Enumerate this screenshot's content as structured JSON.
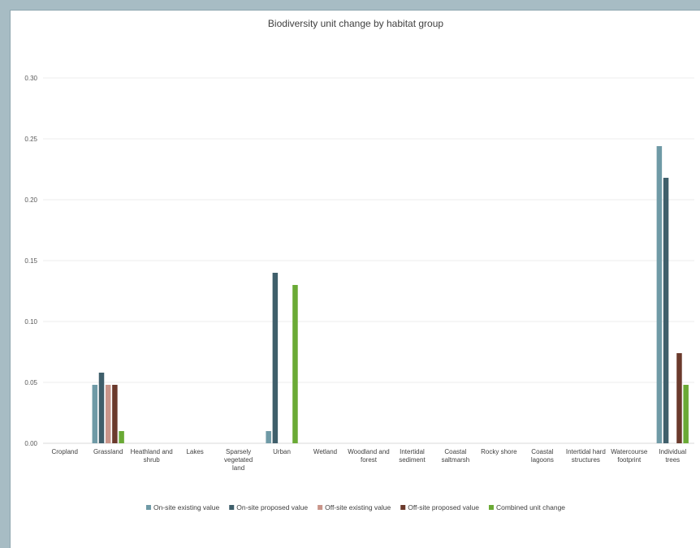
{
  "chart_data": {
    "type": "bar",
    "title": "Biodiversity unit change by habitat group",
    "xlabel": "",
    "ylabel": "",
    "ylim": [
      0,
      0.3
    ],
    "yticks": [
      "0.00",
      "0.05",
      "0.10",
      "0.15",
      "0.20",
      "0.25",
      "0.30"
    ],
    "grid": true,
    "legend_position": "bottom",
    "categories": [
      [
        "Cropland"
      ],
      [
        "Grassland"
      ],
      [
        "Heathland and",
        "shrub"
      ],
      [
        "Lakes"
      ],
      [
        "Sparsely",
        "vegetated",
        "land"
      ],
      [
        "Urban"
      ],
      [
        "Wetland"
      ],
      [
        "Woodland and",
        "forest"
      ],
      [
        "Intertidal",
        "sediment"
      ],
      [
        "Coastal",
        "saltmarsh"
      ],
      [
        "Rocky shore"
      ],
      [
        "Coastal",
        "lagoons"
      ],
      [
        "Intertidal hard",
        "structures"
      ],
      [
        "Watercourse",
        "footprint"
      ],
      [
        "Individual",
        "trees"
      ]
    ],
    "series": [
      {
        "name": "On-site existing value",
        "color": "#6f9aa6",
        "values": [
          0,
          0.048,
          0,
          0,
          0,
          0.01,
          0,
          0,
          0,
          0,
          0,
          0,
          0,
          0,
          0.244
        ]
      },
      {
        "name": "On-site proposed value",
        "color": "#3f5f6b",
        "values": [
          0,
          0.058,
          0,
          0,
          0,
          0.14,
          0,
          0,
          0,
          0,
          0,
          0,
          0,
          0,
          0.218
        ]
      },
      {
        "name": "Off-site existing value",
        "color": "#c9958a",
        "values": [
          0,
          0.048,
          0,
          0,
          0,
          0,
          0,
          0,
          0,
          0,
          0,
          0,
          0,
          0,
          0
        ]
      },
      {
        "name": "Off-site proposed value",
        "color": "#6b3a2c",
        "values": [
          0,
          0.048,
          0,
          0,
          0,
          0,
          0,
          0,
          0,
          0,
          0,
          0,
          0,
          0,
          0.074
        ]
      },
      {
        "name": "Combined unit change",
        "color": "#6aaa35",
        "values": [
          0,
          0.01,
          0,
          0,
          0,
          0.13,
          0,
          0,
          0,
          0,
          0,
          0,
          0,
          0,
          0.048
        ]
      }
    ]
  }
}
